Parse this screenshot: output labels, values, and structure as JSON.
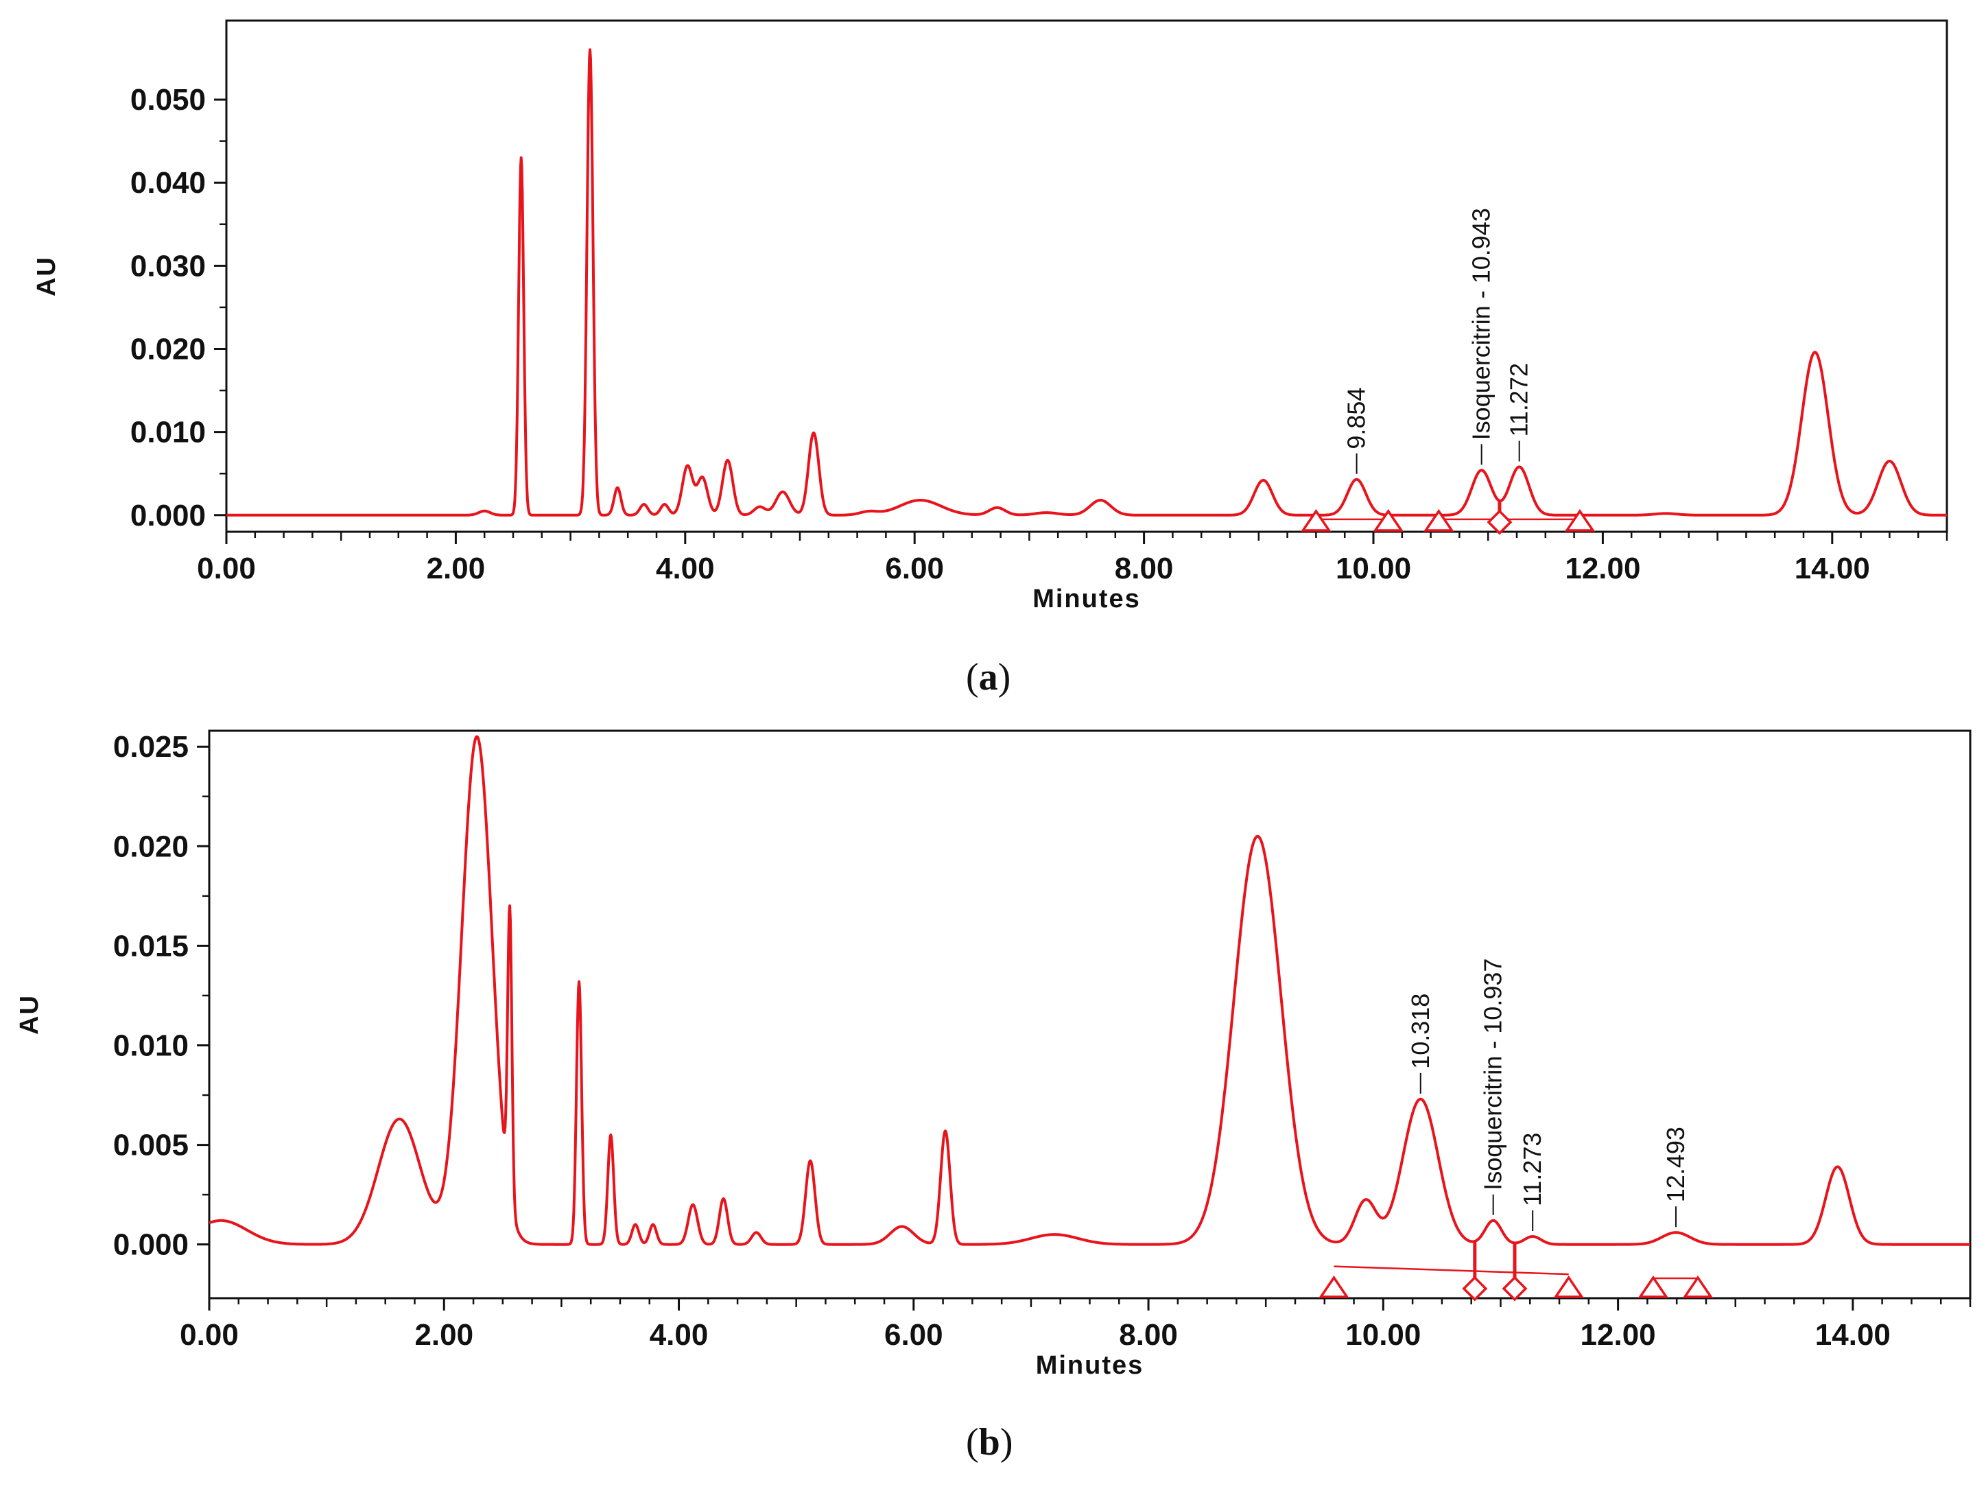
{
  "chart_data": [
    {
      "type": "line",
      "caption": {
        "open": "(",
        "letter": "a",
        "close": ")"
      },
      "xlabel": "Minutes",
      "ylabel": "AU",
      "xlim": [
        0,
        15
      ],
      "ylim": [
        -0.002,
        0.0595
      ],
      "x_ticks": [
        "0.00",
        "2.00",
        "4.00",
        "6.00",
        "8.00",
        "10.00",
        "12.00",
        "14.00"
      ],
      "y_ticks": [
        "0.000",
        "0.010",
        "0.020",
        "0.030",
        "0.040",
        "0.050"
      ],
      "y_tick_values": [
        0,
        0.01,
        0.02,
        0.03,
        0.04,
        0.05
      ],
      "line_color": "#e8141c",
      "peaks": [
        {
          "t": 2.25,
          "h": 0.0005,
          "w": 0.05
        },
        {
          "t": 2.57,
          "h": 0.043,
          "w": 0.022
        },
        {
          "t": 3.17,
          "h": 0.056,
          "w": 0.026
        },
        {
          "t": 3.41,
          "h": 0.0033,
          "w": 0.03
        },
        {
          "t": 3.64,
          "h": 0.0013,
          "w": 0.035
        },
        {
          "t": 3.82,
          "h": 0.0013,
          "w": 0.035
        },
        {
          "t": 4.02,
          "h": 0.0059,
          "w": 0.045
        },
        {
          "t": 4.15,
          "h": 0.0045,
          "w": 0.045
        },
        {
          "t": 4.37,
          "h": 0.0066,
          "w": 0.045
        },
        {
          "t": 4.65,
          "h": 0.001,
          "w": 0.05
        },
        {
          "t": 4.85,
          "h": 0.0028,
          "w": 0.06
        },
        {
          "t": 5.12,
          "h": 0.0099,
          "w": 0.045
        },
        {
          "t": 5.6,
          "h": 0.0004,
          "w": 0.08
        },
        {
          "t": 6.05,
          "h": 0.0018,
          "w": 0.18
        },
        {
          "t": 6.72,
          "h": 0.0009,
          "w": 0.07
        },
        {
          "t": 7.15,
          "h": 0.0003,
          "w": 0.1
        },
        {
          "t": 7.62,
          "h": 0.0018,
          "w": 0.09
        },
        {
          "t": 9.04,
          "h": 0.0042,
          "w": 0.08
        },
        {
          "t": 9.854,
          "h": 0.0043,
          "w": 0.08
        },
        {
          "t": 10.943,
          "h": 0.0054,
          "w": 0.085
        },
        {
          "t": 11.272,
          "h": 0.0058,
          "w": 0.085
        },
        {
          "t": 12.55,
          "h": 0.0002,
          "w": 0.1
        },
        {
          "t": 13.85,
          "h": 0.0196,
          "w": 0.115
        },
        {
          "t": 14.5,
          "h": 0.0065,
          "w": 0.1
        }
      ],
      "peak_labels": [
        {
          "t": 9.854,
          "y": 0.0043,
          "text": "9.854"
        },
        {
          "t": 10.943,
          "y": 0.0054,
          "text": "Isoquercitrin - 10.943"
        },
        {
          "t": 11.272,
          "y": 0.0058,
          "text": "11.272"
        }
      ],
      "baseline_segments": [
        [
          9.5,
          -0.0005,
          10.15,
          -0.0005
        ],
        [
          10.6,
          -0.0005,
          11.8,
          -0.0005
        ]
      ],
      "markers": [
        {
          "t": 9.5,
          "type": "triangle"
        },
        {
          "t": 10.13,
          "type": "triangle"
        },
        {
          "t": 10.57,
          "type": "triangle"
        },
        {
          "t": 11.1,
          "type": "diamond"
        },
        {
          "t": 11.8,
          "type": "triangle"
        }
      ],
      "drop_lines": [
        11.1
      ]
    },
    {
      "type": "line",
      "caption": {
        "open": "(",
        "letter": "b",
        "close": ")"
      },
      "xlabel": "Minutes",
      "ylabel": "AU",
      "xlim": [
        0,
        15
      ],
      "ylim": [
        -0.0027,
        0.0258
      ],
      "x_ticks": [
        "0.00",
        "2.00",
        "4.00",
        "6.00",
        "8.00",
        "10.00",
        "12.00",
        "14.00"
      ],
      "y_ticks": [
        "0.000",
        "0.005",
        "0.010",
        "0.015",
        "0.020",
        "0.025"
      ],
      "y_tick_values": [
        0,
        0.005,
        0.01,
        0.015,
        0.02,
        0.025
      ],
      "line_color": "#e8141c",
      "peaks": [
        {
          "t": 0.1,
          "h": 0.0012,
          "w": 0.22
        },
        {
          "t": 1.62,
          "h": 0.0063,
          "w": 0.18
        },
        {
          "t": 2.28,
          "h": 0.0255,
          "w": 0.13
        },
        {
          "t": 2.56,
          "h": 0.0145,
          "w": 0.018
        },
        {
          "t": 3.15,
          "h": 0.0132,
          "w": 0.022
        },
        {
          "t": 3.42,
          "h": 0.0055,
          "w": 0.025
        },
        {
          "t": 3.63,
          "h": 0.001,
          "w": 0.03
        },
        {
          "t": 3.78,
          "h": 0.001,
          "w": 0.03
        },
        {
          "t": 4.12,
          "h": 0.002,
          "w": 0.04
        },
        {
          "t": 4.38,
          "h": 0.0023,
          "w": 0.035
        },
        {
          "t": 4.66,
          "h": 0.0006,
          "w": 0.04
        },
        {
          "t": 5.12,
          "h": 0.0042,
          "w": 0.04
        },
        {
          "t": 5.9,
          "h": 0.0009,
          "w": 0.1
        },
        {
          "t": 6.27,
          "h": 0.0057,
          "w": 0.04
        },
        {
          "t": 7.2,
          "h": 0.0005,
          "w": 0.2
        },
        {
          "t": 8.93,
          "h": 0.0205,
          "w": 0.2
        },
        {
          "t": 9.85,
          "h": 0.0022,
          "w": 0.09
        },
        {
          "t": 10.318,
          "h": 0.0073,
          "w": 0.15
        },
        {
          "t": 10.937,
          "h": 0.0012,
          "w": 0.07
        },
        {
          "t": 11.273,
          "h": 0.0004,
          "w": 0.07
        },
        {
          "t": 12.493,
          "h": 0.0006,
          "w": 0.12
        },
        {
          "t": 13.87,
          "h": 0.0039,
          "w": 0.1
        }
      ],
      "peak_labels": [
        {
          "t": 10.318,
          "y": 0.0068,
          "text": "10.318"
        },
        {
          "t": 10.937,
          "y": -0.0002,
          "text": "Isoquercitrin - 10.937"
        },
        {
          "t": 11.273,
          "y": -0.0006,
          "text": "11.273"
        },
        {
          "t": 12.493,
          "y": -0.0009,
          "text": "12.493"
        }
      ],
      "baseline_segments": [
        [
          9.58,
          -0.0011,
          11.58,
          -0.0015
        ],
        [
          12.3,
          -0.0017,
          12.68,
          -0.0017
        ]
      ],
      "markers": [
        {
          "t": 9.58,
          "type": "triangle"
        },
        {
          "t": 10.78,
          "type": "diamond"
        },
        {
          "t": 11.12,
          "type": "diamond"
        },
        {
          "t": 11.58,
          "type": "triangle"
        },
        {
          "t": 12.3,
          "type": "triangle"
        },
        {
          "t": 12.68,
          "type": "triangle"
        }
      ],
      "drop_lines": [
        10.78,
        11.12
      ]
    }
  ]
}
